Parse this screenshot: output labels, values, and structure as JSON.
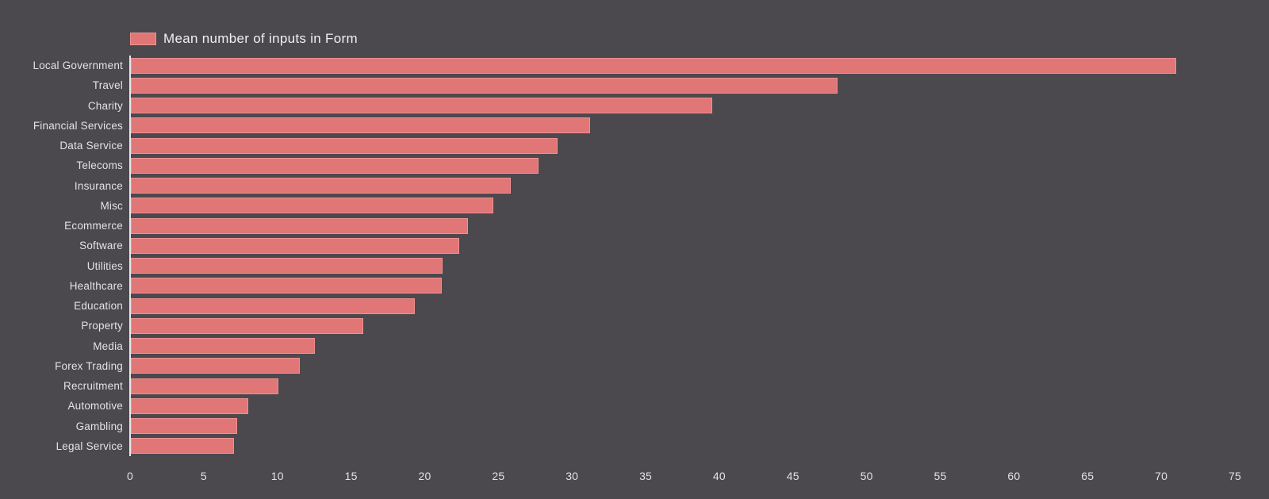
{
  "chart_data": {
    "type": "bar",
    "orientation": "horizontal",
    "legend": "Mean number of inputs in Form",
    "legend_position": "top-left",
    "grid": false,
    "categories": [
      "Local Government",
      "Travel",
      "Charity",
      "Financial Services",
      "Data Service",
      "Telecoms",
      "Insurance",
      "Misc",
      "Ecommerce",
      "Software",
      "Utilities",
      "Healthcare",
      "Education",
      "Property",
      "Media",
      "Forex Trading",
      "Recruitment",
      "Automotive",
      "Gambling",
      "Legal Service"
    ],
    "values": [
      71,
      48,
      39.5,
      31.2,
      29,
      27.7,
      25.8,
      24.6,
      22.9,
      22.3,
      21.2,
      21.1,
      19.3,
      15.8,
      12.5,
      11.5,
      10,
      8,
      7.2,
      7
    ],
    "xlabel": "",
    "ylabel": "",
    "xlim": [
      0,
      75
    ],
    "xticks": [
      0,
      5,
      10,
      15,
      20,
      25,
      30,
      35,
      40,
      45,
      50,
      55,
      60,
      65,
      70,
      75
    ],
    "colors": {
      "background": "#4b484e",
      "bar_fill": "#e17677",
      "bar_border": "#ee9091",
      "axis_line": "#e9e7ea",
      "text": "#e4e2e5",
      "legend_text": "#f2f0f2"
    }
  }
}
